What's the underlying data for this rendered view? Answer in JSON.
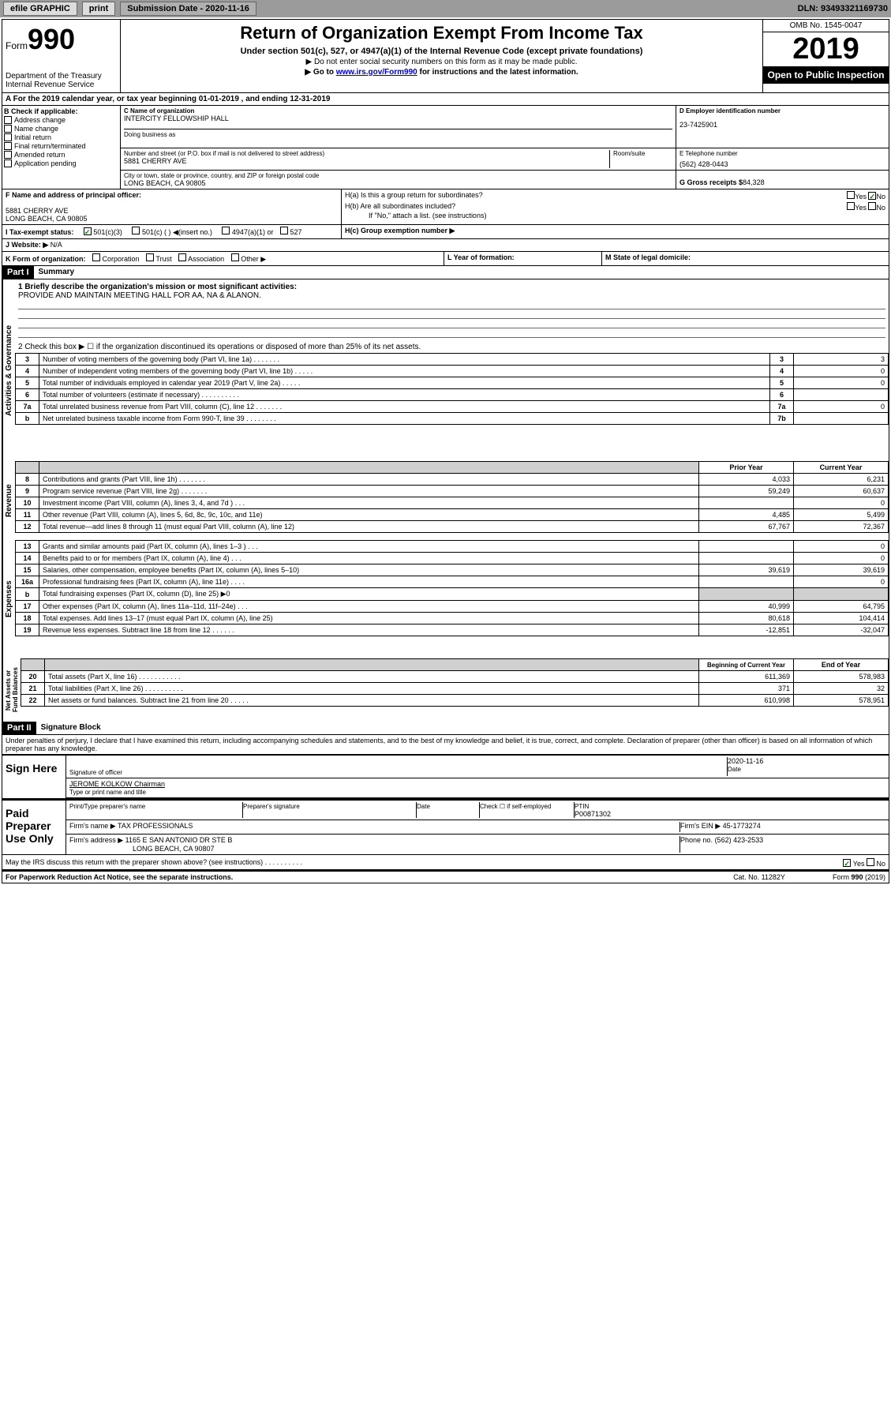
{
  "topbar": {
    "efile": "efile GRAPHIC",
    "print": "print",
    "sub_label": "Submission Date - 2020-11-16",
    "dln": "DLN: 93493321169730"
  },
  "header": {
    "form_label": "Form",
    "form_num": "990",
    "dept": "Department of the Treasury\nInternal Revenue Service",
    "title": "Return of Organization Exempt From Income Tax",
    "subtitle": "Under section 501(c), 527, or 4947(a)(1) of the Internal Revenue Code (except private foundations)",
    "instr1": "▶ Do not enter social security numbers on this form as it may be made public.",
    "instr2": "▶ Go to www.irs.gov/Form990 for instructions and the latest information.",
    "omb": "OMB No. 1545-0047",
    "year": "2019",
    "open": "Open to Public Inspection"
  },
  "rowA": "A For the 2019 calendar year, or tax year beginning 01-01-2019    , and ending 12-31-2019",
  "colB": {
    "label": "B Check if applicable:",
    "items": [
      "Address change",
      "Name change",
      "Initial return",
      "Final return/terminated",
      "Amended return",
      "Application pending"
    ]
  },
  "colC": {
    "name_label": "C Name of organization",
    "name": "INTERCITY FELLOWSHIP HALL",
    "dba_label": "Doing business as",
    "addr_label": "Number and street (or P.O. box if mail is not delivered to street address)",
    "addr": "5881 CHERRY AVE",
    "room_label": "Room/suite",
    "city_label": "City or town, state or province, country, and ZIP or foreign postal code",
    "city": "LONG BEACH, CA  90805"
  },
  "colD": {
    "ein_label": "D Employer identification number",
    "ein": "23-7425901",
    "phone_label": "E Telephone number",
    "phone": "(562) 428-0443",
    "receipts_label": "G Gross receipts $",
    "receipts": "84,328"
  },
  "rowF": {
    "label": "F Name and address of principal officer:",
    "addr1": "5881 CHERRY AVE",
    "addr2": "LONG BEACH, CA  90805"
  },
  "rowH": {
    "ha": "H(a)  Is this a group return for subordinates?",
    "hb": "H(b)  Are all subordinates included?",
    "hb_note": "If \"No,\" attach a list. (see instructions)",
    "hc": "H(c)  Group exemption number ▶",
    "yes": "Yes",
    "no": "No"
  },
  "rowI": {
    "label": "I    Tax-exempt status:",
    "opts": [
      "501(c)(3)",
      "501(c) (  ) ◀(insert no.)",
      "4947(a)(1) or",
      "527"
    ]
  },
  "rowJ": {
    "label": "J    Website: ▶",
    "val": "N/A"
  },
  "rowK": {
    "label": "K Form of organization:",
    "opts": [
      "Corporation",
      "Trust",
      "Association",
      "Other ▶"
    ],
    "L": "L Year of formation:",
    "M": "M State of legal domicile:"
  },
  "part1": {
    "header": "Part I",
    "title": "Summary",
    "line1_label": "1  Briefly describe the organization's mission or most significant activities:",
    "line1_val": "PROVIDE AND MAINTAIN MEETING HALL FOR AA, NA & ALANON.",
    "line2": "2   Check this box ▶ ☐  if the organization discontinued its operations or disposed of more than 25% of its net assets.",
    "governance_rows": [
      {
        "n": "3",
        "text": "Number of voting members of the governing body (Part VI, line 1a)  .    .    .    .    .    .    .",
        "ln": "3",
        "val": "3"
      },
      {
        "n": "4",
        "text": "Number of independent voting members of the governing body (Part VI, line 1b)   .    .    .    .    .",
        "ln": "4",
        "val": "0"
      },
      {
        "n": "5",
        "text": "Total number of individuals employed in calendar year 2019 (Part V, line 2a)   .    .    .    .    .",
        "ln": "5",
        "val": "0"
      },
      {
        "n": "6",
        "text": "Total number of volunteers (estimate if necessary)   .    .    .    .    .    .    .    .    .    .",
        "ln": "6",
        "val": ""
      },
      {
        "n": "7a",
        "text": "Total unrelated business revenue from Part VIII, column (C), line 12   .    .    .    .    .    .    .",
        "ln": "7a",
        "val": "0"
      },
      {
        "n": "b",
        "text": "Net unrelated business taxable income from Form 990-T, line 39   .    .    .    .    .    .    .    .",
        "ln": "7b",
        "val": ""
      }
    ],
    "prior_year": "Prior Year",
    "current_year": "Current Year",
    "revenue_rows": [
      {
        "n": "8",
        "text": "Contributions and grants (Part VIII, line 1h)   .    .    .    .    .    .    .",
        "py": "4,033",
        "cy": "6,231"
      },
      {
        "n": "9",
        "text": "Program service revenue (Part VIII, line 2g)   .    .    .    .    .    .    .",
        "py": "59,249",
        "cy": "60,637"
      },
      {
        "n": "10",
        "text": "Investment income (Part VIII, column (A), lines 3, 4, and 7d )   .    .    .",
        "py": "",
        "cy": "0"
      },
      {
        "n": "11",
        "text": "Other revenue (Part VIII, column (A), lines 5, 6d, 8c, 9c, 10c, and 11e)",
        "py": "4,485",
        "cy": "5,499"
      },
      {
        "n": "12",
        "text": "Total revenue—add lines 8 through 11 (must equal Part VIII, column (A), line 12)",
        "py": "67,767",
        "cy": "72,367"
      }
    ],
    "expense_rows": [
      {
        "n": "13",
        "text": "Grants and similar amounts paid (Part IX, column (A), lines 1–3 )   .    .    .",
        "py": "",
        "cy": "0"
      },
      {
        "n": "14",
        "text": "Benefits paid to or for members (Part IX, column (A), line 4)   .    .    .",
        "py": "",
        "cy": "0"
      },
      {
        "n": "15",
        "text": "Salaries, other compensation, employee benefits (Part IX, column (A), lines 5–10)",
        "py": "39,619",
        "cy": "39,619"
      },
      {
        "n": "16a",
        "text": "Professional fundraising fees (Part IX, column (A), line 11e)   .    .    .    .",
        "py": "",
        "cy": "0"
      },
      {
        "n": "b",
        "text": "Total fundraising expenses (Part IX, column (D), line 25) ▶0",
        "py": "SHADE",
        "cy": "SHADE"
      },
      {
        "n": "17",
        "text": "Other expenses (Part IX, column (A), lines 11a–11d, 11f–24e)   .    .    .",
        "py": "40,999",
        "cy": "64,795"
      },
      {
        "n": "18",
        "text": "Total expenses. Add lines 13–17 (must equal Part IX, column (A), line 25)",
        "py": "80,618",
        "cy": "104,414"
      },
      {
        "n": "19",
        "text": "Revenue less expenses. Subtract line 18 from line 12   .    .    .    .    .    .",
        "py": "-12,851",
        "cy": "-32,047"
      }
    ],
    "boy": "Beginning of Current Year",
    "eoy": "End of Year",
    "asset_rows": [
      {
        "n": "20",
        "text": "Total assets (Part X, line 16)   .    .    .    .    .    .    .    .    .    .    .",
        "py": "611,369",
        "cy": "578,983"
      },
      {
        "n": "21",
        "text": "Total liabilities (Part X, line 26)   .    .    .    .    .    .    .    .    .    .",
        "py": "371",
        "cy": "32"
      },
      {
        "n": "22",
        "text": "Net assets or fund balances. Subtract line 21 from line 20   .    .    .    .    .",
        "py": "610,998",
        "cy": "578,951"
      }
    ]
  },
  "part2": {
    "header": "Part II",
    "title": "Signature Block",
    "perjury": "Under penalties of perjury, I declare that I have examined this return, including accompanying schedules and statements, and to the best of my knowledge and belief, it is true, correct, and complete. Declaration of preparer (other than officer) is based on all information of which preparer has any knowledge.",
    "sign_here": "Sign Here",
    "sig_officer": "Signature of officer",
    "date": "Date",
    "date_val": "2020-11-16",
    "officer_name": "JEROME KOLKOW  Chairman",
    "type_name": "Type or print name and title",
    "paid_prep": "Paid Preparer Use Only",
    "prep_name_label": "Print/Type preparer's name",
    "prep_sig_label": "Preparer's signature",
    "check_self": "Check ☐ if self-employed",
    "ptin_label": "PTIN",
    "ptin": "P00871302",
    "firm_name_label": "Firm's name     ▶",
    "firm_name": "TAX PROFESSIONALS",
    "firm_ein_label": "Firm's EIN ▶",
    "firm_ein": "45-1773274",
    "firm_addr_label": "Firm's address ▶",
    "firm_addr": "1165 E SAN ANTONIO DR STE B",
    "firm_city": "LONG BEACH, CA  90807",
    "phone_label": "Phone no.",
    "phone": "(562) 423-2533",
    "discuss": "May the IRS discuss this return with the preparer shown above? (see instructions)    .    .    .    .    .    .    .    .    .    .",
    "yes": "Yes",
    "no": "No"
  },
  "footer": {
    "paperwork": "For Paperwork Reduction Act Notice, see the separate instructions.",
    "cat": "Cat. No. 11282Y",
    "form": "Form 990 (2019)"
  }
}
